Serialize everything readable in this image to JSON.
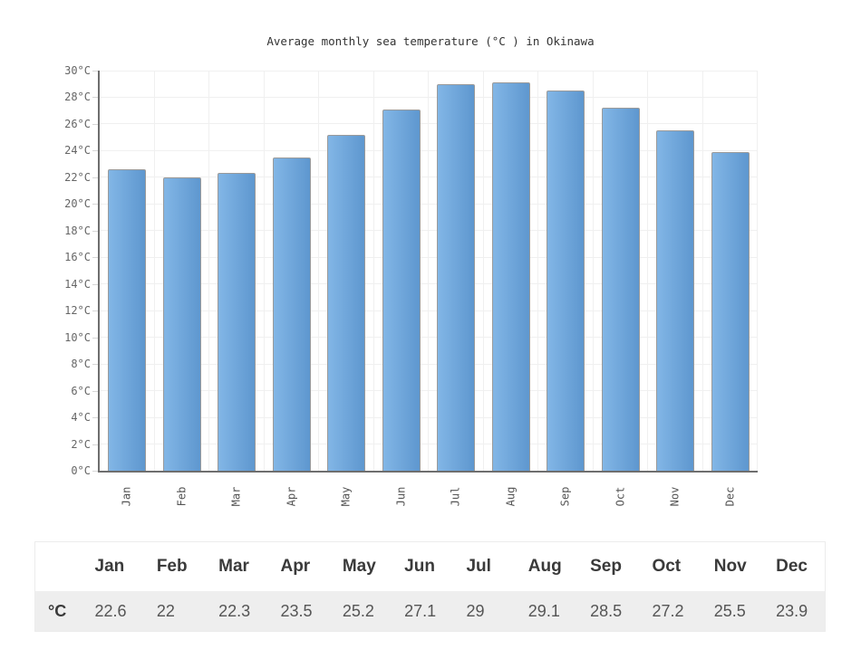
{
  "chart_data": {
    "type": "bar",
    "title": "Average monthly sea temperature (°C ) in Okinawa",
    "categories": [
      "Jan",
      "Feb",
      "Mar",
      "Apr",
      "May",
      "Jun",
      "Jul",
      "Aug",
      "Sep",
      "Oct",
      "Nov",
      "Dec"
    ],
    "values": [
      22.6,
      22,
      22.3,
      23.5,
      25.2,
      27.1,
      29,
      29.1,
      28.5,
      27.2,
      25.5,
      23.9
    ],
    "ylabel": "",
    "xlabel": "",
    "ylim": [
      0,
      30
    ],
    "y_tick_step": 2,
    "y_tick_suffix": "°C",
    "grid": "on",
    "legend": "none",
    "colors": {
      "bar_gradient_left": "#82b6e6",
      "bar_gradient_right": "#5e97cf",
      "bar_border": "#9a9a9a",
      "axis_line": "#6e6e6e",
      "gridline": "#f0f0f0",
      "tick": "#d6d6d6",
      "title_text": "#333333",
      "axis_label_text": "#666666"
    }
  },
  "table": {
    "unit_label": "°C",
    "columns": [
      "Jan",
      "Feb",
      "Mar",
      "Apr",
      "May",
      "Jun",
      "Jul",
      "Aug",
      "Sep",
      "Oct",
      "Nov",
      "Dec"
    ],
    "values": [
      "22.6",
      "22",
      "22.3",
      "23.5",
      "25.2",
      "27.1",
      "29",
      "29.1",
      "28.5",
      "27.2",
      "25.5",
      "23.9"
    ],
    "header_bg": "#ffffff",
    "row_bg": "#eeeeee"
  }
}
